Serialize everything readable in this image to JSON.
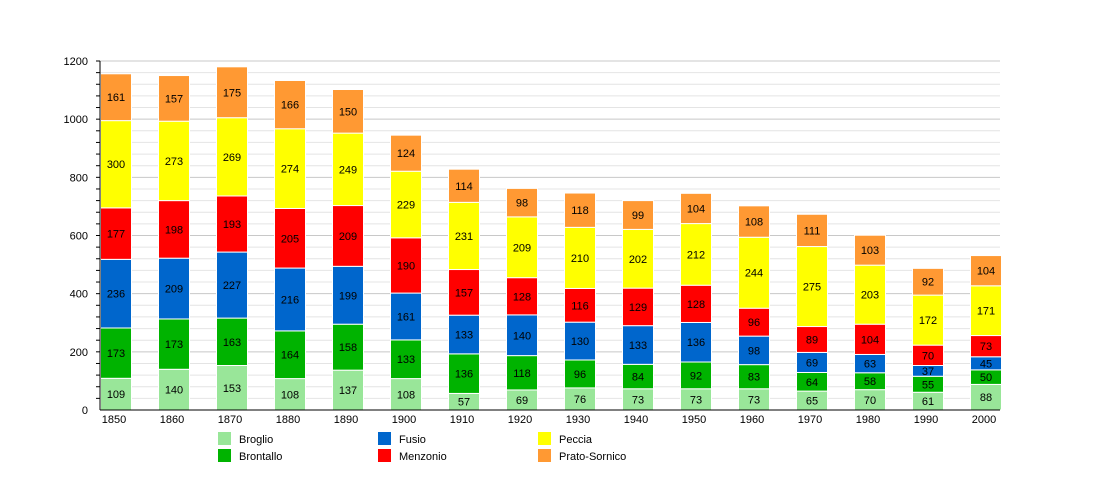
{
  "chart_data": {
    "type": "bar",
    "stacked": true,
    "categories": [
      "1850",
      "1860",
      "1870",
      "1880",
      "1890",
      "1900",
      "1910",
      "1920",
      "1930",
      "1940",
      "1950",
      "1960",
      "1970",
      "1980",
      "1990",
      "2000"
    ],
    "series": [
      {
        "name": "Broglio",
        "color": "#99e699",
        "values": [
          109,
          140,
          153,
          108,
          137,
          108,
          57,
          69,
          76,
          73,
          73,
          73,
          65,
          70,
          61,
          88
        ]
      },
      {
        "name": "Brontallo",
        "color": "#00b300",
        "values": [
          173,
          173,
          163,
          164,
          158,
          133,
          136,
          118,
          96,
          84,
          92,
          83,
          64,
          58,
          55,
          50
        ]
      },
      {
        "name": "Fusio",
        "color": "#0066cc",
        "values": [
          236,
          209,
          227,
          216,
          199,
          161,
          133,
          140,
          130,
          133,
          136,
          98,
          69,
          63,
          37,
          45
        ]
      },
      {
        "name": "Menzonio",
        "color": "#ff0000",
        "values": [
          177,
          198,
          193,
          205,
          209,
          190,
          157,
          128,
          116,
          129,
          128,
          96,
          89,
          104,
          70,
          73
        ]
      },
      {
        "name": "Peccia",
        "color": "#ffff00",
        "values": [
          300,
          273,
          269,
          274,
          249,
          229,
          231,
          209,
          210,
          202,
          212,
          244,
          275,
          203,
          172,
          171
        ]
      },
      {
        "name": "Prato-Sornico",
        "color": "#ff9933",
        "values": [
          161,
          157,
          175,
          166,
          150,
          124,
          114,
          98,
          118,
          99,
          104,
          108,
          111,
          103,
          92,
          104
        ]
      }
    ],
    "ylim": [
      0,
      1200
    ],
    "yticks": [
      "0",
      "200",
      "400",
      "600",
      "800",
      "1000",
      "1200"
    ],
    "grid": true,
    "legend": "bottom"
  }
}
